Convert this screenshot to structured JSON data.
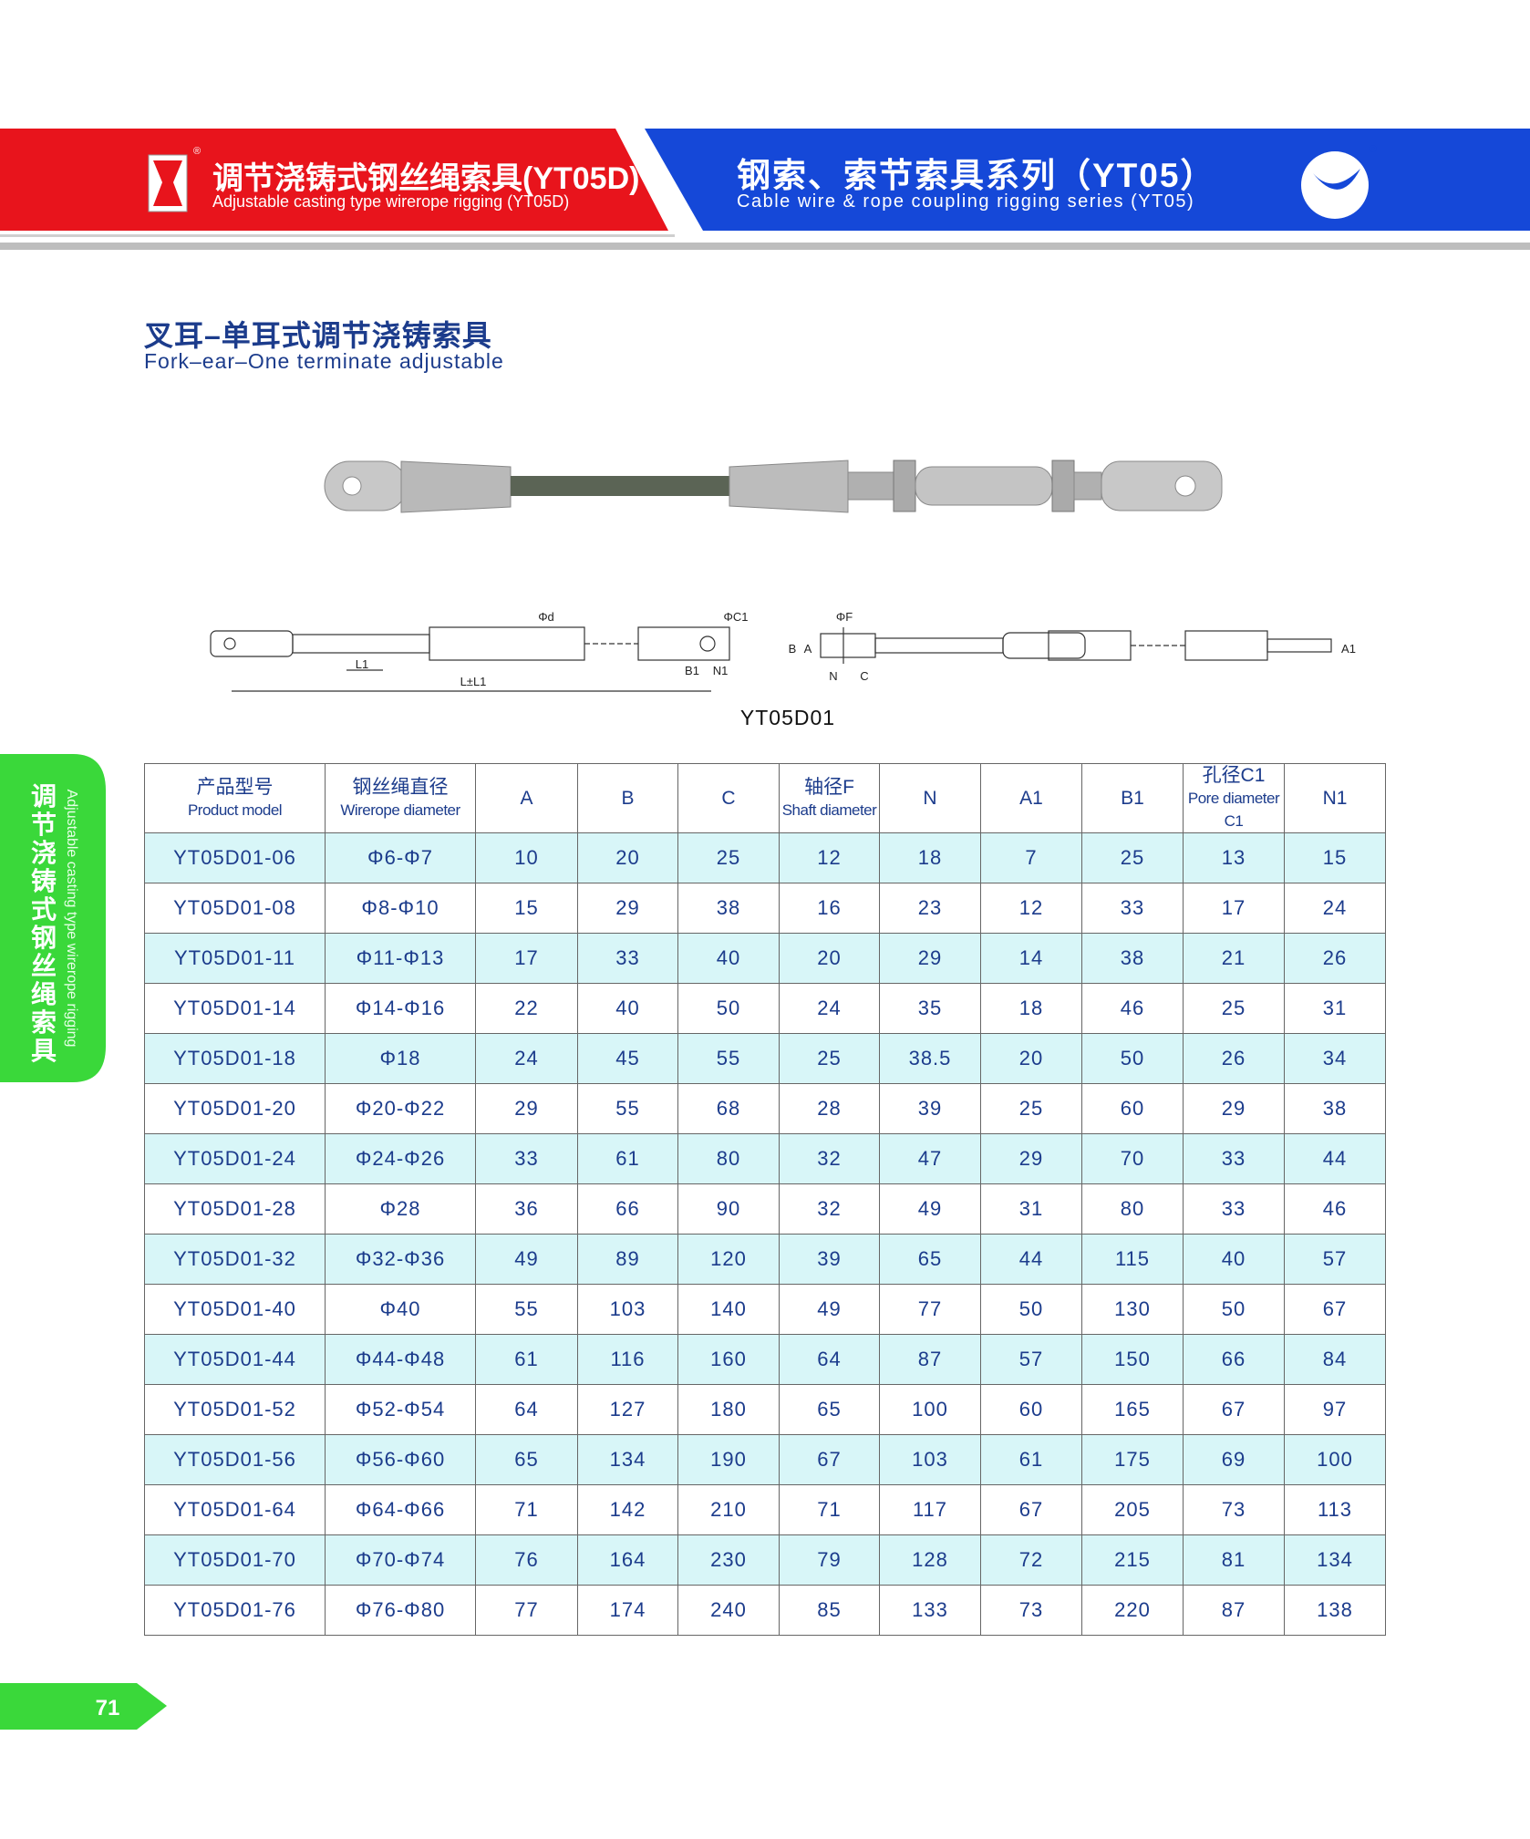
{
  "header": {
    "left_title": "调节浇铸式钢丝绳索具(YT05D)",
    "left_subtitle": "Adjustable casting type wirerope rigging (YT05D)",
    "right_title": "钢索、索节索具系列（YT05）",
    "right_subtitle": "Cable wire & rope coupling rigging series (YT05)",
    "registered_mark": "®"
  },
  "section": {
    "title": "叉耳–单耳式调节浇铸索具",
    "subtitle": "Fork–ear–One terminate adjustable"
  },
  "drawing": {
    "label": "YT05D01",
    "left_annotations": [
      "Φd",
      "ΦC1",
      "L1",
      "L±L1",
      "B1",
      "N1"
    ],
    "right_annotations": [
      "ΦF",
      "B",
      "A",
      "N",
      "C",
      "A1"
    ]
  },
  "side_tab": {
    "cn": "调节浇铸式钢丝绳索具",
    "en": "Adjustable casting type wirerope rigging"
  },
  "page_number": "71",
  "table": {
    "columns": [
      {
        "cn": "产品型号",
        "en": "Product model"
      },
      {
        "cn": "钢丝绳直径",
        "en": "Wirerope diameter"
      },
      {
        "cn": "A"
      },
      {
        "cn": "B"
      },
      {
        "cn": "C"
      },
      {
        "cn": "轴径F",
        "en": "Shaft diameter"
      },
      {
        "cn": "N"
      },
      {
        "cn": "A1"
      },
      {
        "cn": "B1"
      },
      {
        "cn": "孔径C1",
        "en": "Pore diameter C1"
      },
      {
        "cn": "N1"
      }
    ],
    "rows": [
      [
        "YT05D01-06",
        "Φ6-Φ7",
        10,
        20,
        25,
        12,
        18,
        7,
        25,
        13,
        15
      ],
      [
        "YT05D01-08",
        "Φ8-Φ10",
        15,
        29,
        38,
        16,
        23,
        12,
        33,
        17,
        24
      ],
      [
        "YT05D01-11",
        "Φ11-Φ13",
        17,
        33,
        40,
        20,
        29,
        14,
        38,
        21,
        26
      ],
      [
        "YT05D01-14",
        "Φ14-Φ16",
        22,
        40,
        50,
        24,
        35,
        18,
        46,
        25,
        31
      ],
      [
        "YT05D01-18",
        "Φ18",
        24,
        45,
        55,
        25,
        38.5,
        20,
        50,
        26,
        34
      ],
      [
        "YT05D01-20",
        "Φ20-Φ22",
        29,
        55,
        68,
        28,
        39,
        25,
        60,
        29,
        38
      ],
      [
        "YT05D01-24",
        "Φ24-Φ26",
        33,
        61,
        80,
        32,
        47,
        29,
        70,
        33,
        44
      ],
      [
        "YT05D01-28",
        "Φ28",
        36,
        66,
        90,
        32,
        49,
        31,
        80,
        33,
        46
      ],
      [
        "YT05D01-32",
        "Φ32-Φ36",
        49,
        89,
        120,
        39,
        65,
        44,
        115,
        40,
        57
      ],
      [
        "YT05D01-40",
        "Φ40",
        55,
        103,
        140,
        49,
        77,
        50,
        130,
        50,
        67
      ],
      [
        "YT05D01-44",
        "Φ44-Φ48",
        61,
        116,
        160,
        64,
        87,
        57,
        150,
        66,
        84
      ],
      [
        "YT05D01-52",
        "Φ52-Φ54",
        64,
        127,
        180,
        65,
        100,
        60,
        165,
        67,
        97
      ],
      [
        "YT05D01-56",
        "Φ56-Φ60",
        65,
        134,
        190,
        67,
        103,
        61,
        175,
        69,
        100
      ],
      [
        "YT05D01-64",
        "Φ64-Φ66",
        71,
        142,
        210,
        71,
        117,
        67,
        205,
        73,
        113
      ],
      [
        "YT05D01-70",
        "Φ70-Φ74",
        76,
        164,
        230,
        79,
        128,
        72,
        215,
        81,
        134
      ],
      [
        "YT05D01-76",
        "Φ76-Φ80",
        77,
        174,
        240,
        85,
        133,
        73,
        220,
        87,
        138
      ]
    ]
  }
}
